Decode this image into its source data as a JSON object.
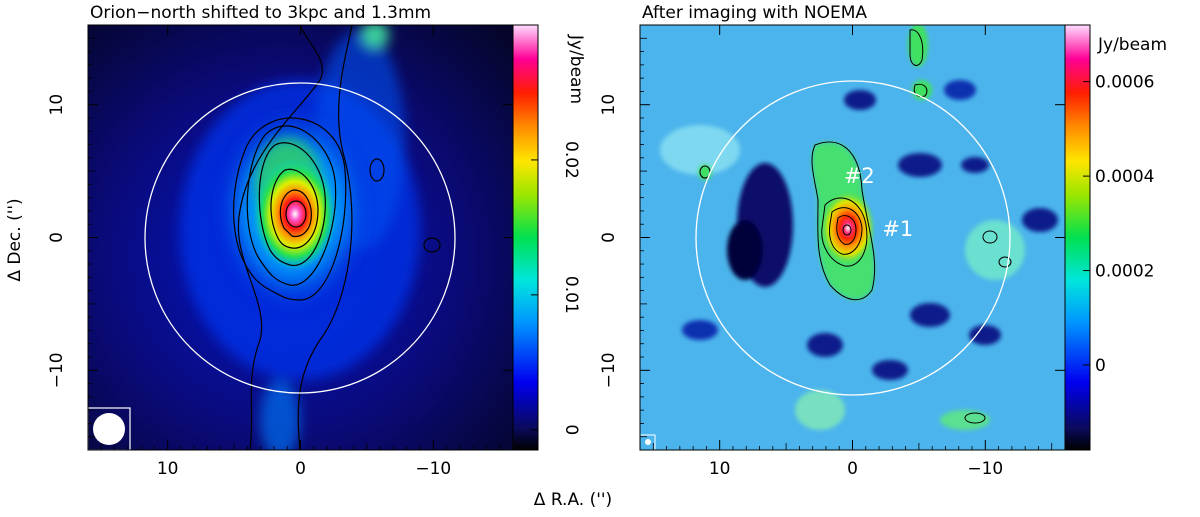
{
  "chart_data": [
    {
      "type": "heatmap",
      "title": "Orion−north shifted to 3kpc and 1.3mm",
      "xlabel": "Δ R.A. ('')",
      "ylabel": "Δ Dec. ('')",
      "xlim": [
        16,
        -16
      ],
      "ylim": [
        -16,
        16
      ],
      "x_ticks": [
        10,
        0,
        -10
      ],
      "x_tick_labels": [
        "10",
        "0",
        "−10"
      ],
      "y_ticks": [
        10,
        0,
        -10
      ],
      "y_tick_labels": [
        "10",
        "0",
        "−10"
      ],
      "colorbar": {
        "label": "Jy/beam",
        "range": [
          -0.0015,
          0.03
        ],
        "ticks": [
          0,
          0.01,
          0.02
        ],
        "tick_labels": [
          "0",
          "0.01",
          "0.02"
        ]
      },
      "peak": {
        "x": 0.3,
        "y": 1.5
      },
      "circle": {
        "cx": 0,
        "cy": 0,
        "r": 11
      },
      "beam": "large-white-ellipse"
    },
    {
      "type": "heatmap",
      "title": "After imaging with NOEMA",
      "xlabel": "",
      "ylabel": "",
      "xlim": [
        16,
        -16
      ],
      "ylim": [
        -16,
        16
      ],
      "x_ticks": [
        10,
        0,
        -10
      ],
      "x_tick_labels": [
        "10",
        "0",
        "−10"
      ],
      "y_ticks": [
        10,
        0,
        -10
      ],
      "y_tick_labels": [
        "10",
        "0",
        "−10"
      ],
      "colorbar": {
        "label": "Jy/beam",
        "range": [
          -0.00018,
          0.00072
        ],
        "ticks": [
          0,
          0.0002,
          0.0004,
          0.0006
        ],
        "tick_labels": [
          "0",
          "0.0002",
          "0.0004",
          "0.0006"
        ]
      },
      "peak": {
        "x": 0.2,
        "y": 0.5
      },
      "circle": {
        "cx": 0,
        "cy": 0,
        "r": 11
      },
      "beam": "small-white-ellipse",
      "annotations": [
        {
          "text": "#2",
          "x": -0.4,
          "y": 4.7
        },
        {
          "text": "#1",
          "x": -3.3,
          "y": 0.7
        }
      ]
    }
  ]
}
